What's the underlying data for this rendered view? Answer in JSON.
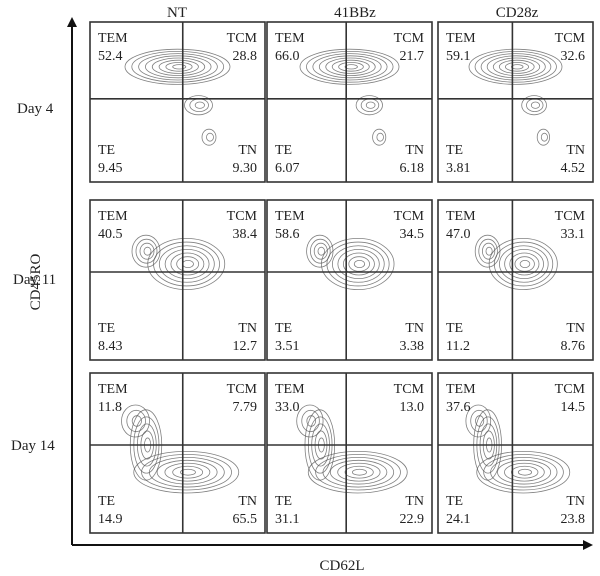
{
  "chart_data": {
    "type": "contour",
    "xlabel": "CD62L",
    "ylabel": "CD45RO",
    "columns": [
      "NT",
      "41BBz",
      "CD28z"
    ],
    "rows": [
      "Day 4",
      "Day 11",
      "Day 14"
    ],
    "quadrant_names": {
      "tl": "TEM",
      "tr": "TCM",
      "bl": "TE",
      "br": "TN"
    },
    "panels": [
      {
        "row": "Day 4",
        "column": "NT",
        "TEM": "52.4",
        "TCM": "28.8",
        "TE": "9.45",
        "TN": "9.30"
      },
      {
        "row": "Day 4",
        "column": "41BBz",
        "TEM": "66.0",
        "TCM": "21.7",
        "TE": "6.07",
        "TN": "6.18"
      },
      {
        "row": "Day 4",
        "column": "CD28z",
        "TEM": "59.1",
        "TCM": "32.6",
        "TE": "3.81",
        "TN": "4.52"
      },
      {
        "row": "Day 11",
        "column": "NT",
        "TEM": "40.5",
        "TCM": "38.4",
        "TE": "8.43",
        "TN": "12.7"
      },
      {
        "row": "Day 11",
        "column": "41BBz",
        "TEM": "58.6",
        "TCM": "34.5",
        "TE": "3.51",
        "TN": "3.38"
      },
      {
        "row": "Day 11",
        "column": "CD28z",
        "TEM": "47.0",
        "TCM": "33.1",
        "TE": "11.2",
        "TN": "8.76"
      },
      {
        "row": "Day 14",
        "column": "NT",
        "TEM": "11.8",
        "TCM": "7.79",
        "TE": "14.9",
        "TN": "65.5"
      },
      {
        "row": "Day 14",
        "column": "41BBz",
        "TEM": "33.0",
        "TCM": "13.0",
        "TE": "31.1",
        "TN": "22.9"
      },
      {
        "row": "Day 14",
        "column": "CD28z",
        "TEM": "37.6",
        "TCM": "14.5",
        "TE": "24.1",
        "TN": "23.8"
      }
    ]
  }
}
